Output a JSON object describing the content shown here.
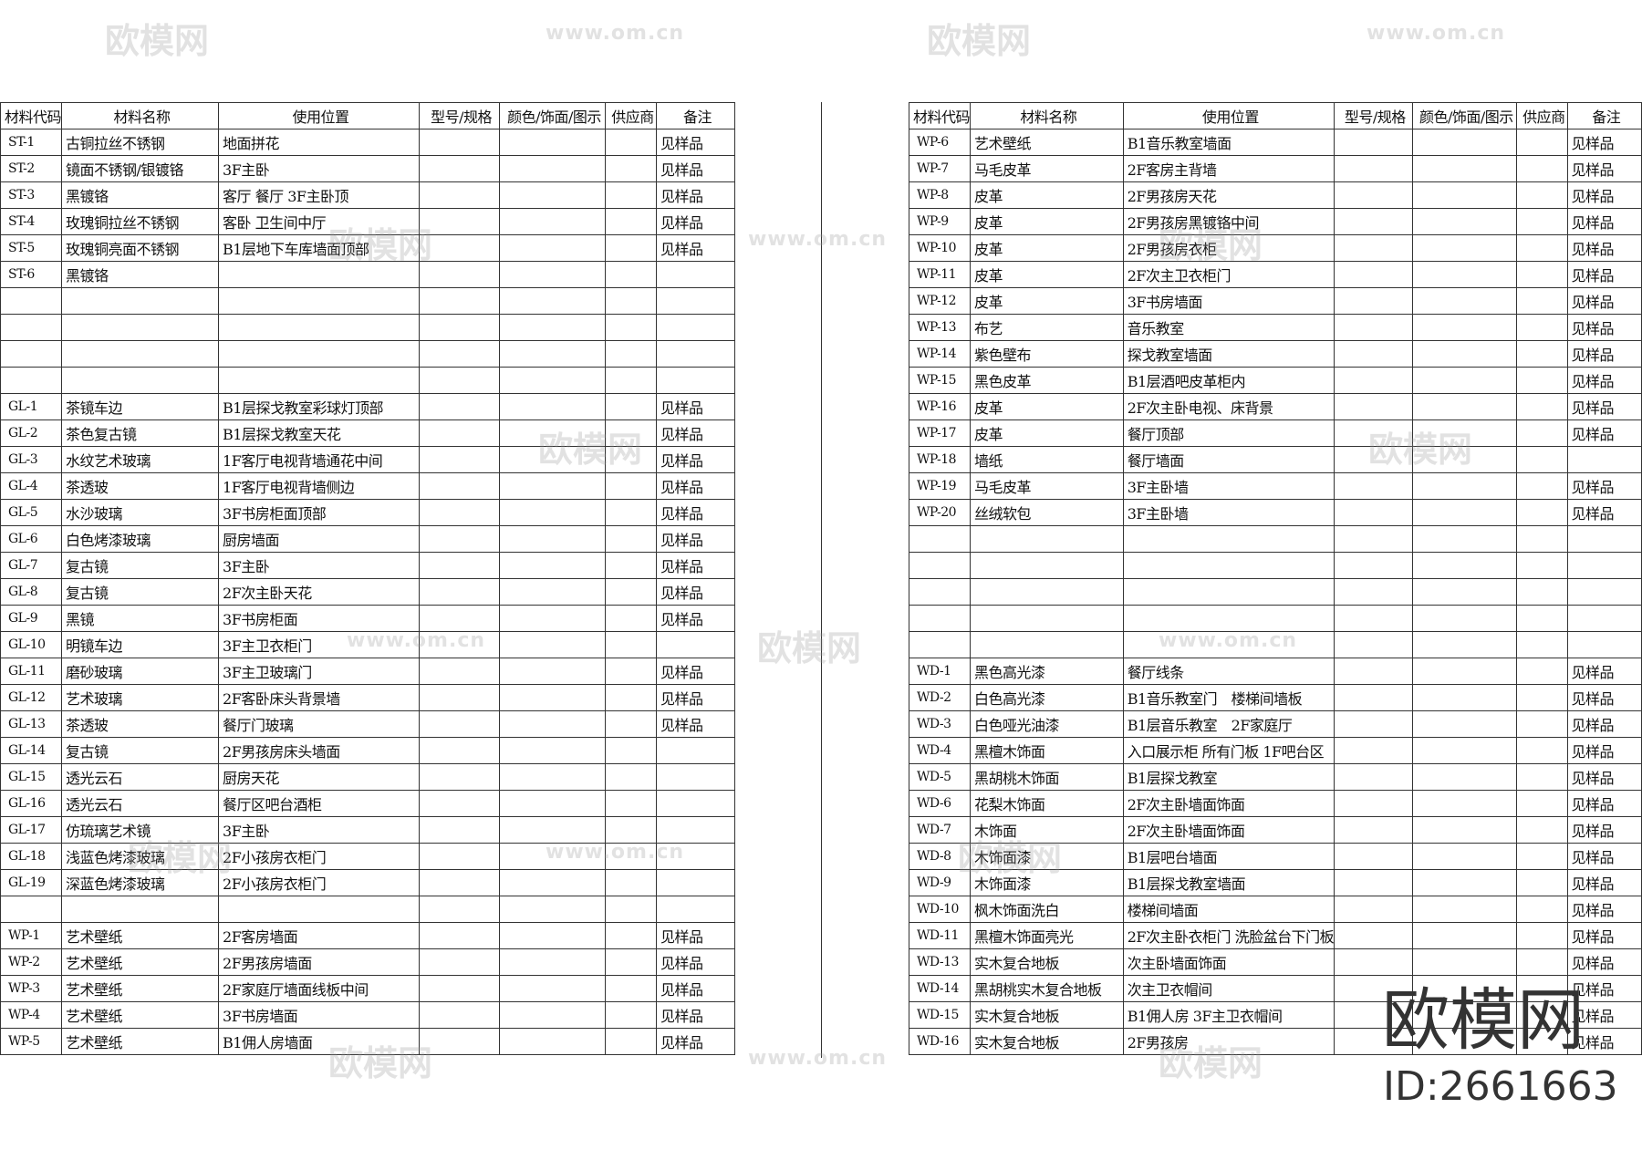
{
  "headers": [
    "材料代码",
    "材料名称",
    "使用位置",
    "型号/规格",
    "颜色/饰面/图示",
    "供应商",
    "备注"
  ],
  "left_rows": [
    [
      "ST-1",
      "古铜拉丝不锈钢",
      "地面拼花",
      "见样品"
    ],
    [
      "ST-2",
      "镜面不锈钢/银镀铬",
      "3F主卧",
      "见样品"
    ],
    [
      "ST-3",
      "黑镀铬",
      "客厅 餐厅 3F主卧顶",
      "见样品"
    ],
    [
      "ST-4",
      "玫瑰铜拉丝不锈钢",
      "客卧 卫生间中厅",
      "见样品"
    ],
    [
      "ST-5",
      "玫瑰铜亮面不锈钢",
      "B1层地下车库墙面顶部",
      "见样品"
    ],
    [
      "ST-6",
      "黑镀铬",
      "",
      ""
    ],
    [
      "",
      "",
      "",
      ""
    ],
    [
      "",
      "",
      "",
      ""
    ],
    [
      "",
      "",
      "",
      ""
    ],
    [
      "",
      "",
      "",
      ""
    ],
    [
      "GL-1",
      "茶镜车边",
      "B1层探戈教室彩球灯顶部",
      "见样品"
    ],
    [
      "GL-2",
      "茶色复古镜",
      "B1层探戈教室天花",
      "见样品"
    ],
    [
      "GL-3",
      "水纹艺术玻璃",
      "1F客厅电视背墙通花中间",
      "见样品"
    ],
    [
      "GL-4",
      "茶透玻",
      "1F客厅电视背墙侧边",
      "见样品"
    ],
    [
      "GL-5",
      "水沙玻璃",
      "3F书房柜面顶部",
      "见样品"
    ],
    [
      "GL-6",
      "白色烤漆玻璃",
      "厨房墙面",
      "见样品"
    ],
    [
      "GL-7",
      "复古镜",
      "3F主卧",
      "见样品"
    ],
    [
      "GL-8",
      "复古镜",
      "2F次主卧天花",
      "见样品"
    ],
    [
      "GL-9",
      "黑镜",
      "3F书房柜面",
      "见样品"
    ],
    [
      "GL-10",
      "明镜车边",
      "3F主卫衣柜门",
      ""
    ],
    [
      "GL-11",
      "磨砂玻璃",
      "3F主卫玻璃门",
      "见样品"
    ],
    [
      "GL-12",
      "艺术玻璃",
      "2F客卧床头背景墙",
      "见样品"
    ],
    [
      "GL-13",
      "茶透玻",
      "餐厅门玻璃",
      "见样品"
    ],
    [
      "GL-14",
      "复古镜",
      "2F男孩房床头墙面",
      ""
    ],
    [
      "GL-15",
      "透光云石",
      "厨房天花",
      ""
    ],
    [
      "GL-16",
      "透光云石",
      "餐厅区吧台酒柜",
      ""
    ],
    [
      "GL-17",
      "仿琉璃艺术镜",
      "3F主卧",
      ""
    ],
    [
      "GL-18",
      "浅蓝色烤漆玻璃",
      "2F小孩房衣柜门",
      ""
    ],
    [
      "GL-19",
      "深蓝色烤漆玻璃",
      "2F小孩房衣柜门",
      ""
    ],
    [
      "",
      "",
      "",
      ""
    ],
    [
      "WP-1",
      "艺术壁纸",
      "2F客房墙面",
      "见样品"
    ],
    [
      "WP-2",
      "艺术壁纸",
      "2F男孩房墙面",
      "见样品"
    ],
    [
      "WP-3",
      "艺术壁纸",
      "2F家庭厅墙面线板中间",
      "见样品"
    ],
    [
      "WP-4",
      "艺术壁纸",
      "3F书房墙面",
      "见样品"
    ],
    [
      "WP-5",
      "艺术壁纸",
      "B1佣人房墙面",
      "见样品"
    ]
  ],
  "right_rows": [
    [
      "WP-6",
      "艺术壁纸",
      "B1音乐教室墙面",
      "见样品"
    ],
    [
      "WP-7",
      "马毛皮革",
      "2F客房主背墙",
      "见样品"
    ],
    [
      "WP-8",
      "皮革",
      "2F男孩房天花",
      "见样品"
    ],
    [
      "WP-9",
      "皮革",
      "2F男孩房黑镀铬中间",
      "见样品"
    ],
    [
      "WP-10",
      "皮革",
      "2F男孩房衣柜",
      "见样品"
    ],
    [
      "WP-11",
      "皮革",
      "2F次主卫衣柜门",
      "见样品"
    ],
    [
      "WP-12",
      "皮革",
      "3F书房墙面",
      "见样品"
    ],
    [
      "WP-13",
      "布艺",
      "音乐教室",
      "见样品"
    ],
    [
      "WP-14",
      "紫色壁布",
      "探戈教室墙面",
      "见样品"
    ],
    [
      "WP-15",
      "黑色皮革",
      "B1层酒吧皮革柜内",
      "见样品"
    ],
    [
      "WP-16",
      "皮革",
      "2F次主卧电视、床背景",
      "见样品"
    ],
    [
      "WP-17",
      "皮革",
      "餐厅顶部",
      "见样品"
    ],
    [
      "WP-18",
      "墙纸",
      "餐厅墙面",
      ""
    ],
    [
      "WP-19",
      "马毛皮革",
      "3F主卧墙",
      "见样品"
    ],
    [
      "WP-20",
      "丝绒软包",
      "3F主卧墙",
      "见样品"
    ],
    [
      "",
      "",
      "",
      ""
    ],
    [
      "",
      "",
      "",
      ""
    ],
    [
      "",
      "",
      "",
      ""
    ],
    [
      "",
      "",
      "",
      ""
    ],
    [
      "",
      "",
      "",
      ""
    ],
    [
      "WD-1",
      "黑色高光漆",
      "餐厅线条",
      "见样品"
    ],
    [
      "WD-2",
      "白色高光漆",
      "B1音乐教室门　楼梯间墙板",
      "见样品"
    ],
    [
      "WD-3",
      "白色哑光油漆",
      "B1层音乐教室　2F家庭厅",
      "见样品"
    ],
    [
      "WD-4",
      "黑檀木饰面",
      "入口展示柜 所有门板 1F吧台区",
      "见样品"
    ],
    [
      "WD-5",
      "黑胡桃木饰面",
      "B1层探戈教室",
      "见样品"
    ],
    [
      "WD-6",
      "花梨木饰面",
      "2F次主卧墙面饰面",
      "见样品"
    ],
    [
      "WD-7",
      "木饰面",
      "2F次主卧墙面饰面",
      "见样品"
    ],
    [
      "WD-8",
      "木饰面漆",
      "B1层吧台墙面",
      "见样品"
    ],
    [
      "WD-9",
      "木饰面漆",
      "B1层探戈教室墙面",
      "见样品"
    ],
    [
      "WD-10",
      "枫木饰面洗白",
      "楼梯间墙面",
      "见样品"
    ],
    [
      "WD-11",
      "黑檀木饰面亮光",
      "2F次主卧衣柜门 洗脸盆台下门板",
      "见样品"
    ],
    [
      "WD-13",
      "实木复合地板",
      "次主卧墙面饰面",
      "见样品"
    ],
    [
      "WD-14",
      "黑胡桃实木复合地板",
      "次主卫衣帽间",
      "见样品"
    ],
    [
      "WD-15",
      "实木复合地板",
      "B1佣人房 3F主卫衣帽间",
      "见样品"
    ],
    [
      "WD-16",
      "实木复合地板",
      "2F男孩房",
      "见样品"
    ]
  ],
  "watermark": {
    "logo": "欧模网",
    "url": "www.om.cn",
    "big": "欧模网",
    "id": "ID:2661663"
  }
}
